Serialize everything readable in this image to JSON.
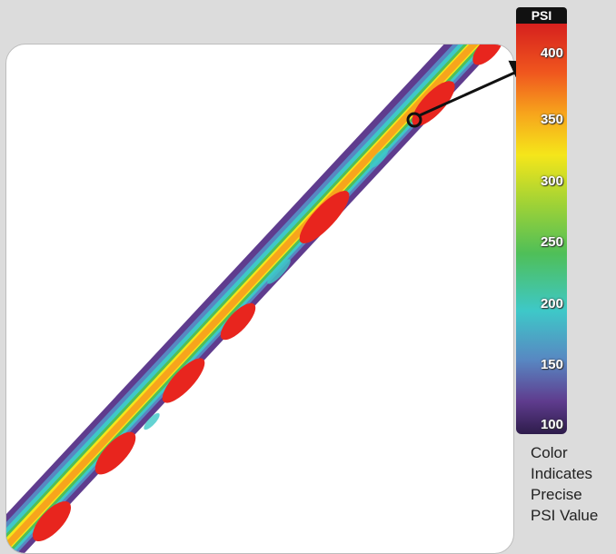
{
  "scale": {
    "title": "PSI",
    "ticks": [
      "400",
      "350",
      "300",
      "250",
      "200",
      "150",
      "100"
    ]
  },
  "legend": {
    "line1": "Color",
    "line2": "Indicates",
    "line3": "Precise",
    "line4": "PSI Value"
  },
  "colors": {
    "background": "#dcdcdc",
    "high": "#e8251e",
    "mid": "#f5e61a",
    "low": "#3ec8c8",
    "edge": "#5f3c8e"
  }
}
